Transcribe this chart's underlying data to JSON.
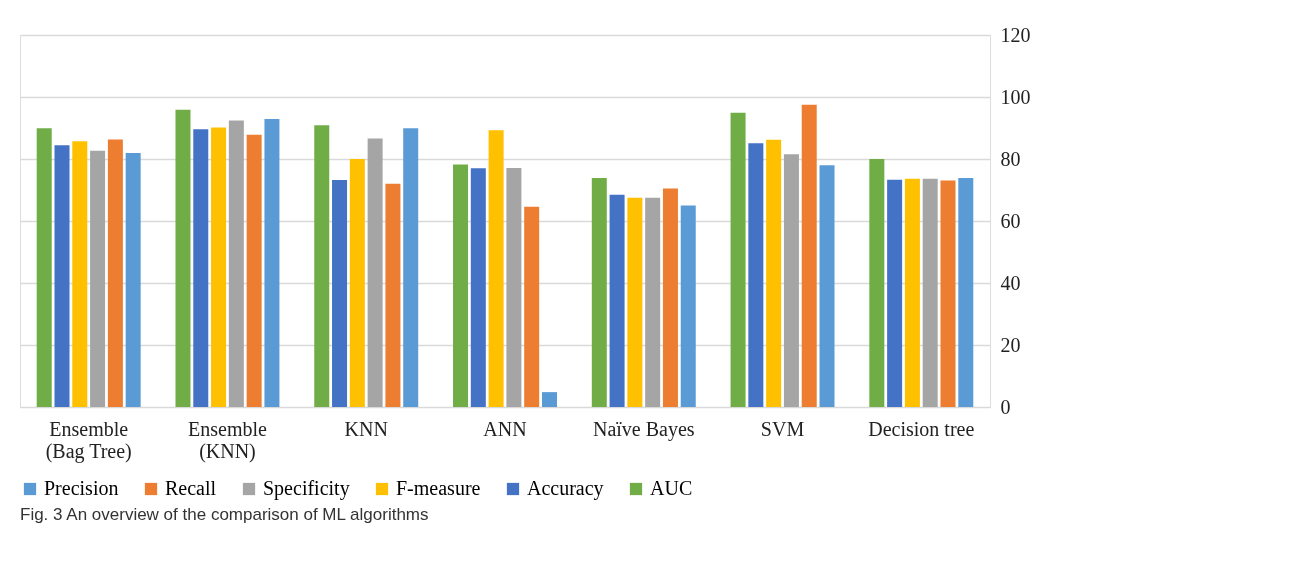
{
  "chart_data": {
    "type": "bar",
    "categories": [
      "Ensemble (Bag Tree)",
      "Ensemble (KNN)",
      "KNN",
      "ANN",
      "Naïve Bayes",
      "SVM",
      "Decision tree"
    ],
    "series": [
      {
        "name": "Precision",
        "color": "#5b9bd5",
        "values": [
          81.9,
          92.9,
          89.9,
          4.8,
          65.0,
          78.0,
          73.9
        ]
      },
      {
        "name": "Recall",
        "color": "#ed7d31",
        "values": [
          86.3,
          87.8,
          72.0,
          64.6,
          70.5,
          97.5,
          73.1
        ]
      },
      {
        "name": "Specificity",
        "color": "#a5a5a5",
        "values": [
          82.7,
          92.4,
          86.6,
          77.1,
          67.5,
          81.5,
          73.6
        ]
      },
      {
        "name": "F-measure",
        "color": "#ffc000",
        "values": [
          85.7,
          90.2,
          80.0,
          89.3,
          67.5,
          86.2,
          73.6
        ]
      },
      {
        "name": "Accuracy",
        "color": "#4472c4",
        "values": [
          84.4,
          89.6,
          73.2,
          77.0,
          68.5,
          85.1,
          73.3
        ]
      },
      {
        "name": "AUC",
        "color": "#70ad47",
        "values": [
          89.9,
          95.9,
          90.9,
          78.2,
          73.9,
          94.9,
          80.0
        ]
      }
    ],
    "ylim": [
      0,
      120
    ],
    "yticks": [
      0,
      20,
      40,
      60,
      80,
      100,
      120
    ],
    "grid": "y",
    "legend": "bottom",
    "annotations": [
      "Fig. 3  An overview of the comparison of ML algorithms"
    ]
  }
}
